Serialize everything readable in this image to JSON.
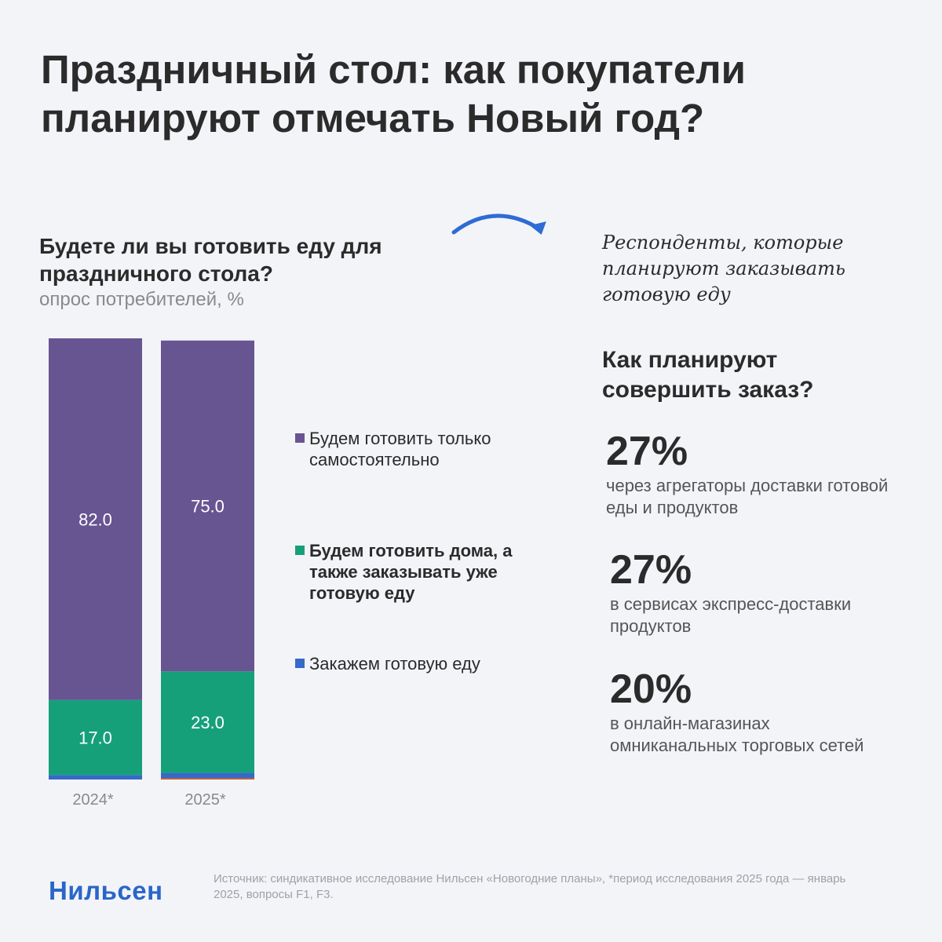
{
  "title": "Праздничный стол: как покупатели планируют отмечать Новый год?",
  "question": {
    "title": "Будете ли вы готовить еду для праздничного стола?",
    "subtitle": "опрос потребителей, %"
  },
  "colors": {
    "cook_self": "#675592",
    "cook_and_order": "#16a07a",
    "order_ready": "#3669c9",
    "accent_arrow": "#2f6bd4",
    "sliver_2025": "#c0603a"
  },
  "chart_data": {
    "type": "bar",
    "stacked": true,
    "categories": [
      "2024*",
      "2025*"
    ],
    "ylim": [
      0,
      100
    ],
    "series": [
      {
        "name": "Закажем готовую еду",
        "values": [
          1.0,
          1.5
        ],
        "color": "#3669c9"
      },
      {
        "name": "Будем готовить дома, а также заказывать уже готовую еду",
        "values": [
          17.0,
          23.0
        ],
        "color": "#16a07a"
      },
      {
        "name": "Будем готовить только самостоятельно",
        "values": [
          82.0,
          75.0
        ],
        "color": "#675592"
      }
    ],
    "data_labels": [
      {
        "category": "2024*",
        "series": "Будем готовить только самостоятельно",
        "text": "82.0"
      },
      {
        "category": "2024*",
        "series": "Будем готовить дома, а также заказывать уже готовую еду",
        "text": "17.0"
      },
      {
        "category": "2025*",
        "series": "Будем готовить только самостоятельно",
        "text": "75.0"
      },
      {
        "category": "2025*",
        "series": "Будем готовить дома, а также заказывать уже готовую еду",
        "text": "23.0"
      }
    ],
    "grid": false,
    "legend_position": "right"
  },
  "legend": [
    {
      "label": "Будем готовить только самостоятельно",
      "color": "#675592",
      "bold": false
    },
    {
      "label": "Будем готовить дома, а также заказывать уже готовую еду",
      "color": "#16a07a",
      "bold": true
    },
    {
      "label": "Закажем готовую еду",
      "color": "#3669c9",
      "bold": false
    }
  ],
  "right": {
    "note": "Респонденты, которые планируют заказывать готовую еду",
    "question": "Как планируют совершить заказ?",
    "stats": [
      {
        "pct": "27%",
        "desc": "через агрегаторы доставки готовой еды и продуктов"
      },
      {
        "pct": "27%",
        "desc": "в сервисах экспресс-доставки продуктов"
      },
      {
        "pct": "20%",
        "desc": "в онлайн-магазинах омниканальных торговых сетей"
      }
    ]
  },
  "footer": {
    "logo": "Нильсен",
    "source": "Источник: синдикативное исследование Нильсен «Новогодние планы», *период исследования 2025 года — январь 2025, вопросы F1, F3."
  }
}
